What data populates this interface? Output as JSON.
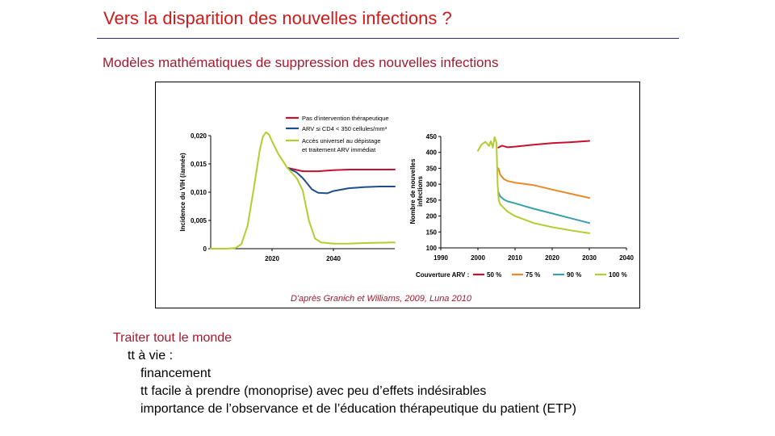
{
  "slide": {
    "title": "Vers la disparition des nouvelles infections ?",
    "subtitle": "Modèles mathématiques  de suppression  des nouvelles  infections",
    "credit": "D'après Granich et Williams, 2009, Luna 2010",
    "bullets": {
      "level1": "Traiter tout le monde",
      "level2": "tt à vie :",
      "level3": [
        "financement",
        "tt facile à prendre (monoprise) avec peu d’effets indésirables",
        "importance de l’observance et de l’éducation thérapeutique du patient (ETP)"
      ]
    }
  },
  "chart_data": [
    {
      "type": "line",
      "title": "",
      "xlabel": "",
      "ylabel": "Incidence du VIH (/année)",
      "xlim": [
        2000,
        2060
      ],
      "ylim": [
        0,
        0.02
      ],
      "xticks": [
        "2020",
        "2040"
      ],
      "xtick_values": [
        2020,
        2040
      ],
      "yticks": [
        "0",
        "0,005",
        "0,010",
        "0,015",
        "0,020"
      ],
      "ytick_values": [
        0,
        0.005,
        0.01,
        0.015,
        0.02
      ],
      "legend_position": "top-right",
      "series": [
        {
          "name": "Pas d’intervention thérapeutique",
          "color": "#c8102e",
          "x": [
            2025,
            2030,
            2035,
            2040,
            2045,
            2050,
            2055,
            2060
          ],
          "y": [
            0.0143,
            0.0137,
            0.0137,
            0.0139,
            0.014,
            0.014,
            0.014,
            0.014
          ]
        },
        {
          "name": "ARV si CD4 < 350 cellules/mm³",
          "color": "#1f4e8c",
          "x": [
            2025,
            2028,
            2030,
            2033,
            2035,
            2038,
            2040,
            2045,
            2050,
            2055,
            2060
          ],
          "y": [
            0.0143,
            0.0135,
            0.0125,
            0.0105,
            0.0099,
            0.0098,
            0.0102,
            0.0107,
            0.0109,
            0.011,
            0.011
          ]
        },
        {
          "name": "Accès universel au dépistage et traitement ARV immédiat",
          "color": "#b5cc2e",
          "x": [
            2000,
            2005,
            2008,
            2010,
            2012,
            2014,
            2016,
            2017,
            2018,
            2019,
            2020,
            2022,
            2025,
            2028,
            2030,
            2032,
            2034,
            2036,
            2040,
            2045,
            2050,
            2060
          ],
          "y": [
            0,
            0,
            0.0001,
            0.0008,
            0.004,
            0.0105,
            0.0175,
            0.0198,
            0.0206,
            0.0202,
            0.019,
            0.0168,
            0.0143,
            0.0125,
            0.0103,
            0.005,
            0.0018,
            0.0011,
            0.0009,
            0.0009,
            0.001,
            0.0011
          ]
        }
      ]
    },
    {
      "type": "line",
      "title": "",
      "xlabel": "",
      "ylabel": "Nombre de nouvelles infections",
      "xlim": [
        1990,
        2040
      ],
      "ylim": [
        100,
        450
      ],
      "xticks": [
        "1990",
        "2000",
        "2010",
        "2020",
        "2030",
        "2040"
      ],
      "xtick_values": [
        1990,
        2000,
        2010,
        2020,
        2030,
        2040
      ],
      "yticks": [
        "100",
        "150",
        "200",
        "250",
        "300",
        "350",
        "400",
        "450"
      ],
      "ytick_values": [
        100,
        150,
        200,
        250,
        300,
        350,
        400,
        450
      ],
      "legend_title": "Couverture ARV :",
      "legend_position": "bottom",
      "series": [
        {
          "name": "50 %",
          "color": "#c8102e",
          "x": [
            2005.5,
            2006.5,
            2008,
            2010,
            2015,
            2020,
            2025,
            2030
          ],
          "y": [
            415,
            421,
            416,
            418,
            424,
            429,
            432,
            436
          ]
        },
        {
          "name": "75 %",
          "color": "#e8892b",
          "x": [
            2005.5,
            2006,
            2007,
            2008,
            2010,
            2015,
            2020,
            2025,
            2030
          ],
          "y": [
            350,
            330,
            316,
            310,
            305,
            297,
            283,
            270,
            257
          ]
        },
        {
          "name": "90 %",
          "color": "#3a9fa8",
          "x": [
            2005.5,
            2006,
            2007,
            2008,
            2010,
            2015,
            2020,
            2025,
            2030
          ],
          "y": [
            275,
            262,
            252,
            246,
            240,
            223,
            208,
            193,
            178
          ]
        },
        {
          "name": "100 %",
          "color": "#b5cc2e",
          "x": [
            2000,
            2001,
            2002,
            2003,
            2003.5,
            2004,
            2004.5,
            2005,
            2005.3,
            2005.6,
            2006,
            2007,
            2008,
            2010,
            2015,
            2020,
            2025,
            2030
          ],
          "y": [
            405,
            425,
            433,
            420,
            435,
            415,
            448,
            430,
            300,
            250,
            237,
            225,
            214,
            200,
            178,
            165,
            155,
            146
          ]
        }
      ]
    }
  ]
}
